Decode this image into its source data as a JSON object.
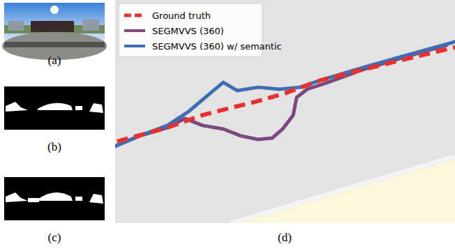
{
  "panel_labels": [
    "(a)",
    "(b)",
    "(c)",
    "(d)"
  ],
  "chart_data": {
    "type": "line",
    "legend": "upper left",
    "tick_labels": false,
    "grid": false,
    "xlim": [
      0,
      100
    ],
    "ylim": [
      0,
      100
    ],
    "series": [
      {
        "name": "Ground truth",
        "color": "#e8312f",
        "line_style": "dashed",
        "x": [
          0.6,
          15.4,
          25.7,
          33.9,
          42.1,
          50.3,
          60.6,
          72.9,
          85.2,
          100
        ],
        "values": [
          36.6,
          42.8,
          48.4,
          51.6,
          54.7,
          58.4,
          64.1,
          68.8,
          73.4,
          78.8
        ]
      },
      {
        "name": "SEGMVVS (360)",
        "color": "#7a4a7e",
        "line_style": "solid",
        "x": [
          0.6,
          7.2,
          15.4,
          20.5,
          25.7,
          31.8,
          37.0,
          42.1,
          46.2,
          49.3,
          52.4,
          53.4,
          56.5,
          62.6,
          72.9,
          85.2,
          97.5
        ],
        "values": [
          35.0,
          39.1,
          42.8,
          46.9,
          43.8,
          42.2,
          39.1,
          37.5,
          38.1,
          42.2,
          48.4,
          56.3,
          60.0,
          63.1,
          68.8,
          74.4,
          79.7
        ]
      },
      {
        "name": "SEGMVVS (360) w/ semantic",
        "color": "#3f6db3",
        "line_style": "solid",
        "x": [
          0,
          7.2,
          15.4,
          21.6,
          25.7,
          31.8,
          35.9,
          42.1,
          48.3,
          54.4,
          60.6,
          72.9,
          85.2,
          100
        ],
        "values": [
          34.4,
          39.1,
          43.8,
          50.0,
          55.3,
          63.1,
          59.4,
          60.9,
          60.0,
          60.9,
          64.1,
          69.7,
          75.0,
          81.3
        ]
      }
    ]
  }
}
